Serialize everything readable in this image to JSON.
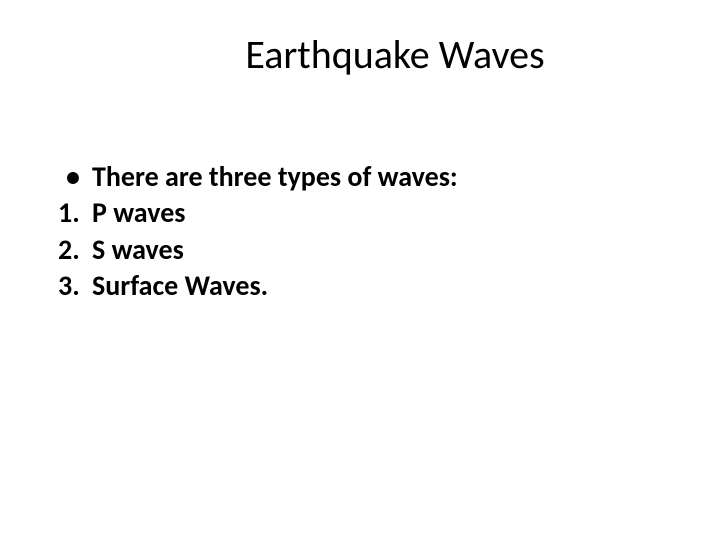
{
  "slide": {
    "title": "Earthquake Waves",
    "bullet": {
      "marker": "•",
      "text": "There are three types of waves:"
    },
    "items": [
      {
        "number": "1.",
        "text": "P waves"
      },
      {
        "number": "2.",
        "text": " S waves"
      },
      {
        "number": "3.",
        "text": " Surface Waves."
      }
    ],
    "title_fontsize": 40,
    "body_fontsize": 28,
    "text_color": "#000000",
    "background_color": "#ffffff",
    "font_weight_body": 700
  }
}
